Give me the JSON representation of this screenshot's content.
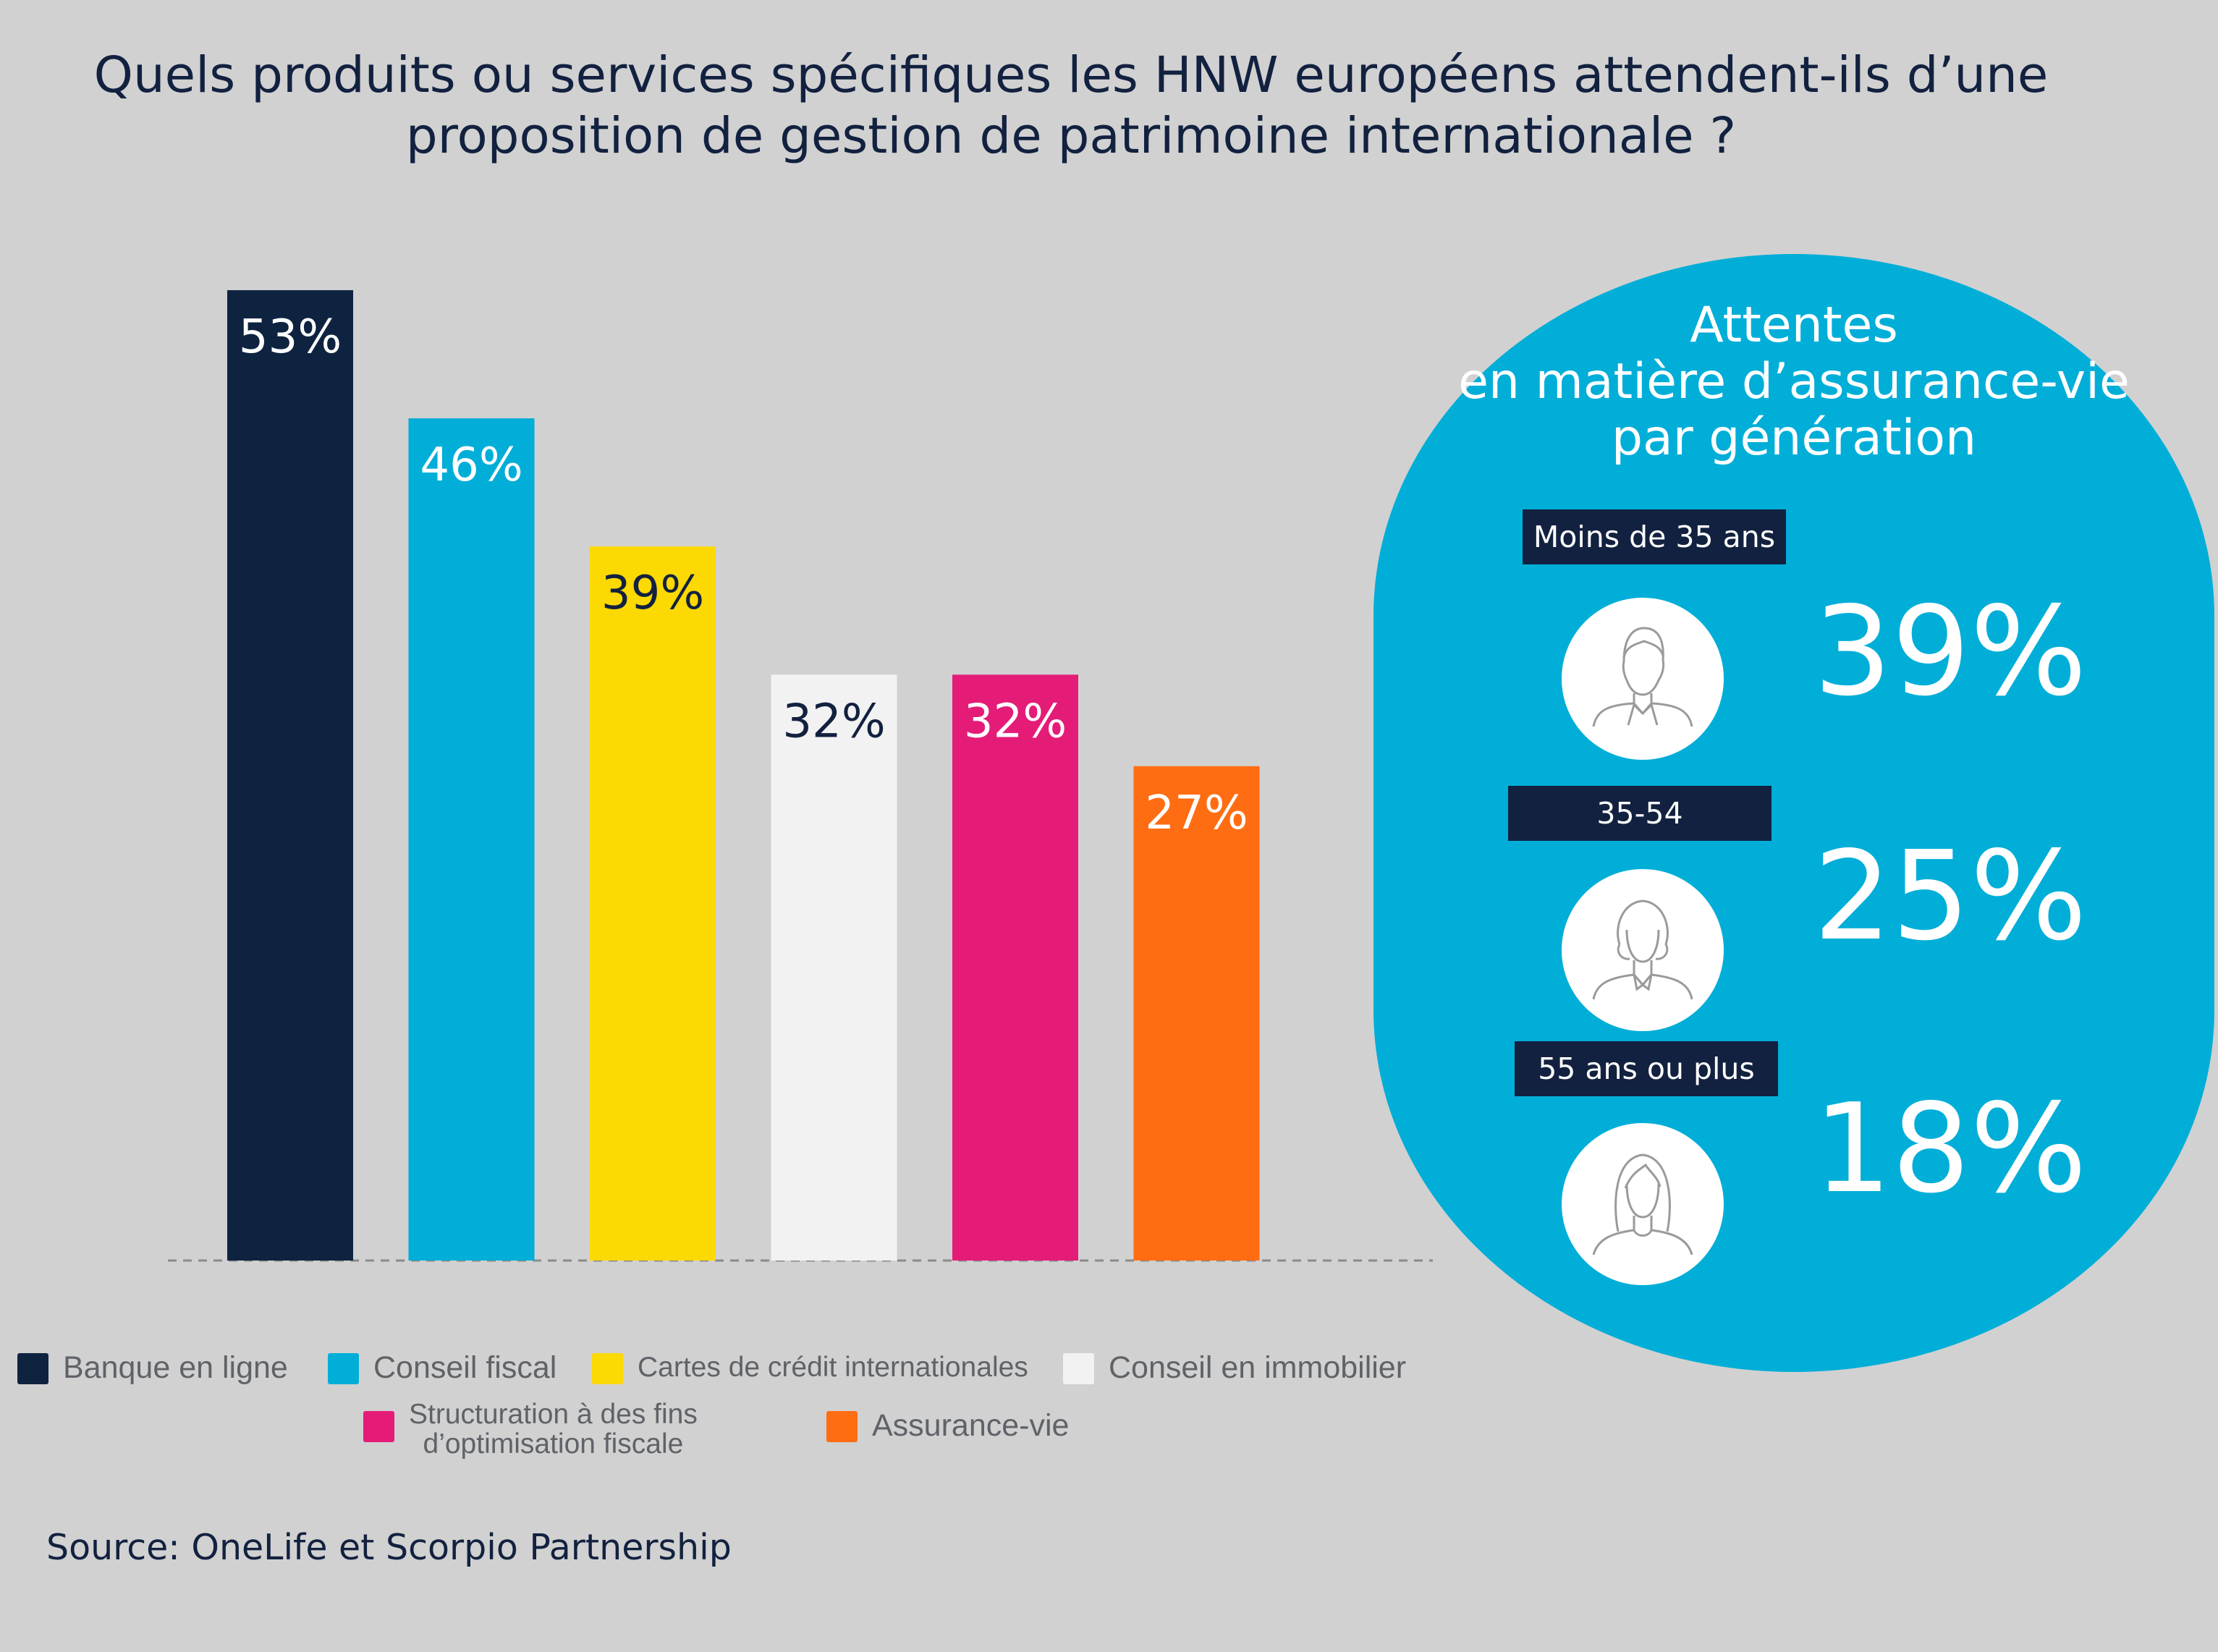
{
  "title": {
    "line1": "Quels produits ou services spécifiques les HNW européens attendent-ils d’une",
    "line2": "proposition de gestion de patrimoine internationale ?"
  },
  "chart_data": {
    "type": "bar",
    "title": "Quels produits ou services spécifiques les HNW européens attendent-ils d’une proposition de gestion de patrimoine internationale ?",
    "categories": [
      "Banque en ligne",
      "Conseil fiscal",
      "Cartes de crédit internationales",
      "Conseil en immobilier",
      "Structuration à des fins d’optimisation fiscale",
      "Assurance-vie"
    ],
    "values": [
      53,
      46,
      39,
      32,
      32,
      27
    ],
    "value_labels": [
      "53%",
      "46%",
      "39%",
      "32%",
      "32%",
      "27%"
    ],
    "colors": [
      "#0e2340",
      "#00aed8",
      "#fcd902",
      "#f2f2f2",
      "#e41c78",
      "#ff6d13"
    ],
    "label_colors": [
      "#ffffff",
      "#ffffff",
      "#12213f",
      "#12213f",
      "#ffffff",
      "#ffffff"
    ],
    "unit": "%",
    "ylim": [
      0,
      53
    ],
    "grid": false,
    "legend_position": "bottom",
    "baseline": "dashed"
  },
  "legend": {
    "row1": [
      {
        "label": "Banque en ligne",
        "color": "#0e2340"
      },
      {
        "label": "Conseil fiscal",
        "color": "#00aed8"
      },
      {
        "label": "Cartes de crédit internationales",
        "color": "#fcd902"
      },
      {
        "label": "Conseil en immobilier",
        "color": "#f2f2f2"
      }
    ],
    "row2": [
      {
        "line1": "Structuration à des fins",
        "line2": "d’optimisation fiscale",
        "color": "#e41c78"
      },
      {
        "label": "Assurance-vie",
        "color": "#ff6d13"
      }
    ]
  },
  "source": "Source: OneLife et Scorpio Partnership",
  "panel": {
    "title_lines": [
      "Attentes",
      "en matière d’assurance-vie",
      "par génération"
    ],
    "background": "#00aed8",
    "groups": [
      {
        "age": "Moins de 35 ans",
        "value": "39%",
        "icon": "young-man-icon"
      },
      {
        "age": "35-54",
        "value": "25%",
        "icon": "woman-icon"
      },
      {
        "age": "55 ans ou plus",
        "value": "18%",
        "icon": "senior-woman-icon"
      }
    ]
  }
}
